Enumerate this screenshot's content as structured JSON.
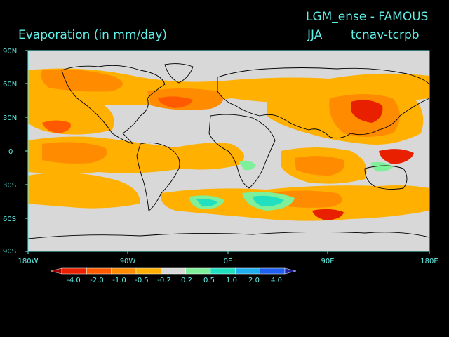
{
  "title": {
    "experiment": "LGM_ense - FAMOUS",
    "variable": "Evaporation (in mm/day)",
    "season": "JJA",
    "difference": "tcnav-tcrpb"
  },
  "axes": {
    "lat_labels": [
      "90N",
      "60N",
      "30N",
      "0",
      "30S",
      "60S",
      "90S"
    ],
    "lon_labels": [
      "180W",
      "90W",
      "0E",
      "90E",
      "180E"
    ]
  },
  "colorbar": {
    "labels": [
      "-4.0",
      "-2.0",
      "-1.0",
      "-0.5",
      "-0.2",
      "0.2",
      "0.5",
      "1.0",
      "2.0",
      "4.0"
    ],
    "colors": [
      "#a00000",
      "#e82000",
      "#ff5a00",
      "#ff8c00",
      "#ffb000",
      "#d8d8d8",
      "#7ff09a",
      "#20e0c0",
      "#20b0f0",
      "#2060f0",
      "#2020a0"
    ]
  },
  "palette": {
    "background": "#000000",
    "text": "#5ff0e8",
    "neutral": "#d8d8d8",
    "coast": "#000000"
  }
}
